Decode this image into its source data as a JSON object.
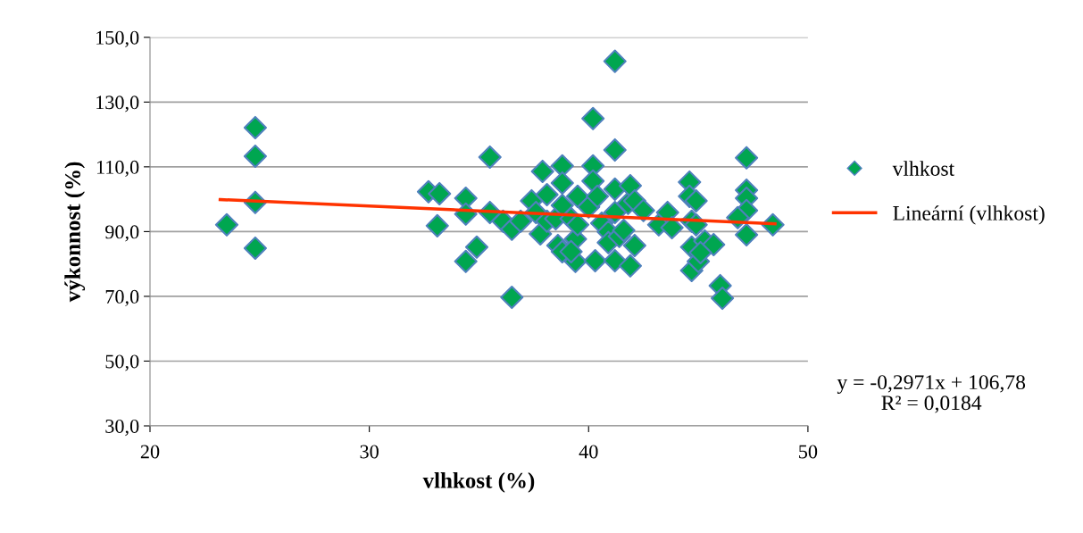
{
  "chart_data": {
    "type": "scatter",
    "xlabel": "vlhkost (%)",
    "ylabel": "výkonnost (%)",
    "xlim": [
      20,
      50
    ],
    "xticks": [
      20,
      30,
      40,
      50
    ],
    "ylim": [
      30,
      150
    ],
    "yticks": [
      {
        "value": 30,
        "label": "30,0"
      },
      {
        "value": 50,
        "label": "50,0"
      },
      {
        "value": 70,
        "label": "70,0"
      },
      {
        "value": 90,
        "label": "90,0"
      },
      {
        "value": 110,
        "label": "110,0"
      },
      {
        "value": 130,
        "label": "130,0"
      },
      {
        "value": 150,
        "label": "150,0"
      }
    ],
    "grid": "y",
    "legend": "right",
    "annotations": [
      "y = -0,2971x + 106,78\nR² = 0,0184"
    ],
    "series": [
      {
        "name": "vlhkost",
        "marker": "diamond",
        "color": "#00a650",
        "x": [
          23.5,
          24.8,
          24.8,
          24.8,
          24.8,
          32.7,
          33.2,
          33.1,
          34.4,
          34.4,
          34.4,
          34.9,
          35.5,
          35.5,
          36.1,
          36.5,
          36.5,
          36.9,
          37.4,
          37.6,
          37.8,
          37.9,
          38.1,
          38.1,
          38.5,
          38.6,
          38.8,
          38.8,
          38.8,
          38.8,
          39.2,
          39.4,
          39.4,
          39.5,
          39.5,
          40.0,
          40.2,
          40.2,
          40.2,
          40.3,
          40.4,
          40.6,
          40.9,
          40.9,
          41.2,
          41.2,
          41.2,
          41.2,
          41.2,
          41.4,
          41.8,
          41.9,
          41.9,
          42.1,
          42.1,
          42.5,
          43.2,
          43.6,
          43.8,
          44.6,
          44.6,
          44.7,
          44.7,
          44.7,
          44.9,
          45.0,
          45.3,
          45.7,
          46.0,
          46.1,
          47.2,
          47.2,
          47.2,
          47.2,
          47.2,
          46.8,
          48.4,
          39.2,
          41.6,
          44.9,
          45.1
        ],
        "values": [
          92.1,
          122.1,
          113.3,
          99.0,
          84.9,
          102.3,
          101.7,
          91.8,
          100.3,
          95.4,
          80.8,
          85.2,
          113.0,
          95.9,
          93.2,
          90.7,
          69.7,
          93.2,
          99.5,
          95.9,
          89.3,
          108.6,
          101.4,
          93.2,
          94.0,
          85.7,
          110.3,
          105.0,
          98.1,
          83.8,
          94.0,
          80.8,
          87.7,
          100.9,
          92.1,
          97.6,
          124.9,
          110.3,
          105.6,
          81.0,
          100.9,
          92.6,
          89.9,
          86.6,
          142.6,
          115.2,
          103.1,
          95.9,
          81.0,
          88.5,
          98.7,
          104.2,
          79.4,
          99.5,
          85.7,
          96.5,
          92.1,
          95.9,
          91.2,
          105.3,
          100.9,
          93.2,
          85.2,
          78.0,
          99.5,
          80.8,
          87.1,
          86.0,
          73.3,
          69.4,
          112.8,
          102.8,
          100.3,
          96.5,
          89.0,
          94.3,
          92.1,
          83.8,
          90.4,
          92.1,
          83.5
        ]
      },
      {
        "name": "Lineární (vlhkost)",
        "type": "line",
        "marker": "none",
        "color": "#ff3300",
        "x": [
          23.2,
          48.5
        ],
        "values": [
          99.9,
          92.4
        ]
      }
    ]
  }
}
